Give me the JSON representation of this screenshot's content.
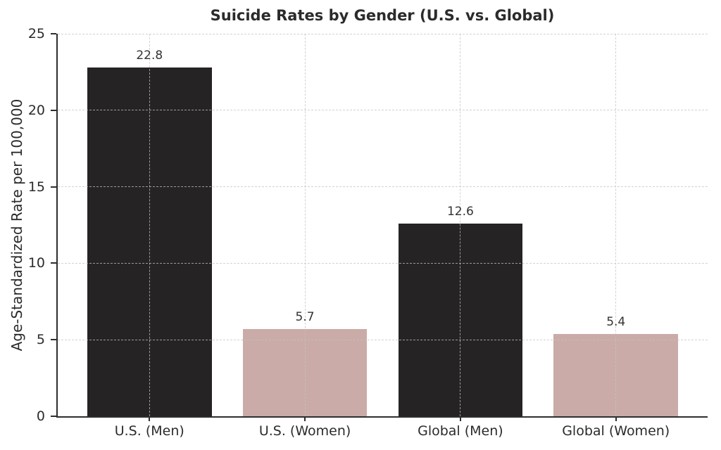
{
  "chart_data": {
    "type": "bar",
    "title": "Suicide Rates by Gender (U.S. vs. Global)",
    "xlabel": "",
    "ylabel": "Age-Standardized Rate per 100,000",
    "categories": [
      "U.S. (Men)",
      "U.S. (Women)",
      "Global (Men)",
      "Global (Women)"
    ],
    "values": [
      22.8,
      5.7,
      12.6,
      5.4
    ],
    "value_labels": [
      "22.8",
      "5.7",
      "12.6",
      "5.4"
    ],
    "bar_colors": [
      "#262324",
      "#caaba7",
      "#262324",
      "#caaba7"
    ],
    "ylim": [
      0,
      25
    ],
    "yticks": [
      0,
      5,
      10,
      15,
      20,
      25
    ],
    "ytick_labels": [
      "0",
      "5",
      "10",
      "15",
      "20",
      "25"
    ],
    "grid": "both-axes dashed, drawn above bars",
    "legend": "none",
    "colors": {
      "men_bar": "#262324",
      "women_bar": "#caaba7",
      "axis": "#2e2e2e",
      "gridline": "#c3c3c3",
      "text": "#2b2b2b",
      "background": "#ffffff"
    }
  }
}
